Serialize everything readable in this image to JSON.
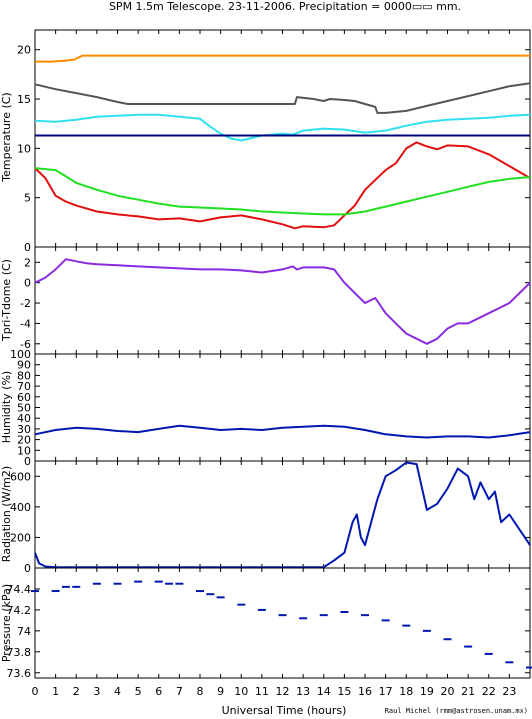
{
  "header": {
    "title": "SPM 1.5m Telescope. 23-11-2006. Precipitation = 0000▭▭ mm."
  },
  "footer": {
    "xlabel": "Universal Time (hours)",
    "credit": "Raul Michel (rmm@astrosen.unam.mx)"
  },
  "colors": {
    "orange": "#ff8c00",
    "gray": "#555555",
    "cyan": "#30e0f0",
    "navy": "#00007a",
    "red": "#e01010",
    "green": "#20e020",
    "purple": "#8a2be2",
    "blue": "#0018b0"
  },
  "chart_data": [
    {
      "type": "line",
      "ylabel": "Temperature (C)",
      "xlim": [
        0,
        24
      ],
      "ylim": [
        0,
        22
      ],
      "yticks": [
        "0",
        "5",
        "10",
        "15",
        "20"
      ],
      "xticks": [
        "0",
        "1",
        "2",
        "3",
        "4",
        "5",
        "6",
        "7",
        "8",
        "9",
        "10",
        "11",
        "12",
        "13",
        "14",
        "15",
        "16",
        "17",
        "18",
        "19",
        "20",
        "21",
        "22",
        "23"
      ],
      "series": [
        {
          "color": "orange",
          "points": [
            [
              0,
              18.8
            ],
            [
              0.8,
              18.8
            ],
            [
              1.5,
              18.9
            ],
            [
              1.9,
              19.0
            ],
            [
              2.3,
              19.4
            ],
            [
              6,
              19.4
            ],
            [
              12,
              19.4
            ],
            [
              18,
              19.4
            ],
            [
              24,
              19.4
            ]
          ]
        },
        {
          "color": "gray",
          "points": [
            [
              0,
              16.5
            ],
            [
              1,
              16.0
            ],
            [
              2,
              15.6
            ],
            [
              3,
              15.2
            ],
            [
              4,
              14.7
            ],
            [
              4.5,
              14.5
            ],
            [
              8,
              14.5
            ],
            [
              12.6,
              14.5
            ],
            [
              12.7,
              15.2
            ],
            [
              13.5,
              15.0
            ],
            [
              14,
              14.8
            ],
            [
              14.3,
              15.0
            ],
            [
              15,
              14.9
            ],
            [
              15.5,
              14.8
            ],
            [
              16,
              14.5
            ],
            [
              16.5,
              14.2
            ],
            [
              16.6,
              13.6
            ],
            [
              17,
              13.6
            ],
            [
              18,
              13.8
            ],
            [
              19,
              14.3
            ],
            [
              20,
              14.8
            ],
            [
              21,
              15.3
            ],
            [
              22,
              15.8
            ],
            [
              23,
              16.3
            ],
            [
              24,
              16.6
            ]
          ]
        },
        {
          "color": "cyan",
          "points": [
            [
              0,
              12.8
            ],
            [
              1,
              12.7
            ],
            [
              2,
              12.9
            ],
            [
              3,
              13.2
            ],
            [
              4,
              13.3
            ],
            [
              5,
              13.4
            ],
            [
              6,
              13.4
            ],
            [
              7,
              13.2
            ],
            [
              8,
              13.0
            ],
            [
              8.5,
              12.2
            ],
            [
              9,
              11.5
            ],
            [
              9.5,
              11.0
            ],
            [
              10,
              10.8
            ],
            [
              11,
              11.3
            ],
            [
              12,
              11.5
            ],
            [
              12.5,
              11.4
            ],
            [
              13,
              11.8
            ],
            [
              14,
              12.0
            ],
            [
              15,
              11.9
            ],
            [
              16,
              11.6
            ],
            [
              17,
              11.8
            ],
            [
              18,
              12.3
            ],
            [
              19,
              12.7
            ],
            [
              20,
              12.9
            ],
            [
              21,
              13.0
            ],
            [
              22,
              13.1
            ],
            [
              23,
              13.3
            ],
            [
              24,
              13.4
            ]
          ]
        },
        {
          "color": "navy",
          "points": [
            [
              0,
              11.3
            ],
            [
              24,
              11.3
            ]
          ]
        },
        {
          "color": "red",
          "points": [
            [
              0,
              8.0
            ],
            [
              0.5,
              7.0
            ],
            [
              1,
              5.2
            ],
            [
              1.5,
              4.6
            ],
            [
              2,
              4.2
            ],
            [
              3,
              3.6
            ],
            [
              4,
              3.3
            ],
            [
              5,
              3.1
            ],
            [
              6,
              2.8
            ],
            [
              7,
              2.9
            ],
            [
              8,
              2.6
            ],
            [
              9,
              3.0
            ],
            [
              10,
              3.2
            ],
            [
              11,
              2.8
            ],
            [
              12,
              2.3
            ],
            [
              12.6,
              1.9
            ],
            [
              13,
              2.1
            ],
            [
              14,
              2.0
            ],
            [
              14.5,
              2.2
            ],
            [
              15,
              3.2
            ],
            [
              15.5,
              4.2
            ],
            [
              16,
              5.8
            ],
            [
              17,
              7.8
            ],
            [
              17.5,
              8.5
            ],
            [
              18,
              10.0
            ],
            [
              18.5,
              10.6
            ],
            [
              19,
              10.2
            ],
            [
              19.5,
              9.9
            ],
            [
              20,
              10.3
            ],
            [
              21,
              10.2
            ],
            [
              22,
              9.4
            ],
            [
              23,
              8.2
            ],
            [
              24,
              7.0
            ]
          ]
        },
        {
          "color": "green",
          "points": [
            [
              0,
              8.0
            ],
            [
              1,
              7.8
            ],
            [
              2,
              6.5
            ],
            [
              3,
              5.8
            ],
            [
              4,
              5.2
            ],
            [
              5,
              4.8
            ],
            [
              6,
              4.4
            ],
            [
              7,
              4.1
            ],
            [
              8,
              4.0
            ],
            [
              9,
              3.9
            ],
            [
              10,
              3.8
            ],
            [
              11,
              3.6
            ],
            [
              12,
              3.5
            ],
            [
              13,
              3.4
            ],
            [
              14,
              3.3
            ],
            [
              15,
              3.3
            ],
            [
              16,
              3.6
            ],
            [
              17,
              4.1
            ],
            [
              18,
              4.6
            ],
            [
              19,
              5.1
            ],
            [
              20,
              5.6
            ],
            [
              21,
              6.1
            ],
            [
              22,
              6.6
            ],
            [
              23,
              6.9
            ],
            [
              24,
              7.1
            ]
          ]
        }
      ]
    },
    {
      "type": "line",
      "ylabel": "Tpri-Tdome (C)",
      "xlim": [
        0,
        24
      ],
      "ylim": [
        -7,
        3.5
      ],
      "yticks": [
        "-6",
        "-4",
        "-2",
        "0",
        "2"
      ],
      "series": [
        {
          "color": "purple",
          "points": [
            [
              0,
              0
            ],
            [
              0.5,
              0.5
            ],
            [
              1,
              1.3
            ],
            [
              1.5,
              2.3
            ],
            [
              2,
              2.1
            ],
            [
              2.5,
              1.9
            ],
            [
              3,
              1.8
            ],
            [
              4,
              1.7
            ],
            [
              5,
              1.6
            ],
            [
              6,
              1.5
            ],
            [
              7,
              1.4
            ],
            [
              8,
              1.3
            ],
            [
              9,
              1.3
            ],
            [
              10,
              1.2
            ],
            [
              11,
              1.0
            ],
            [
              12,
              1.3
            ],
            [
              12.5,
              1.6
            ],
            [
              12.7,
              1.3
            ],
            [
              13,
              1.5
            ],
            [
              14,
              1.5
            ],
            [
              14.5,
              1.3
            ],
            [
              15,
              0
            ],
            [
              15.5,
              -1.0
            ],
            [
              16,
              -2.0
            ],
            [
              16.5,
              -1.5
            ],
            [
              17,
              -3.0
            ],
            [
              17.5,
              -4.0
            ],
            [
              18,
              -5.0
            ],
            [
              18.5,
              -5.5
            ],
            [
              19,
              -6.0
            ],
            [
              19.5,
              -5.5
            ],
            [
              20,
              -4.5
            ],
            [
              20.5,
              -4.0
            ],
            [
              21,
              -4.0
            ],
            [
              21.5,
              -3.5
            ],
            [
              22,
              -3.0
            ],
            [
              22.5,
              -2.5
            ],
            [
              23,
              -2.0
            ],
            [
              23.5,
              -1.0
            ],
            [
              24,
              0
            ]
          ]
        }
      ]
    },
    {
      "type": "line",
      "ylabel": "Humidity (%)",
      "xlim": [
        0,
        24
      ],
      "ylim": [
        0,
        100
      ],
      "yticks": [
        "0",
        "10",
        "20",
        "30",
        "40",
        "50",
        "60",
        "70",
        "80",
        "90",
        "100"
      ],
      "series": [
        {
          "color": "blue",
          "points": [
            [
              0,
              25
            ],
            [
              1,
              29
            ],
            [
              2,
              31
            ],
            [
              3,
              30
            ],
            [
              4,
              28
            ],
            [
              5,
              27
            ],
            [
              6,
              30
            ],
            [
              7,
              33
            ],
            [
              8,
              31
            ],
            [
              9,
              29
            ],
            [
              10,
              30
            ],
            [
              11,
              29
            ],
            [
              12,
              31
            ],
            [
              13,
              32
            ],
            [
              14,
              33
            ],
            [
              15,
              32
            ],
            [
              16,
              29
            ],
            [
              17,
              25
            ],
            [
              18,
              23
            ],
            [
              19,
              22
            ],
            [
              20,
              23
            ],
            [
              21,
              23
            ],
            [
              22,
              22
            ],
            [
              23,
              24
            ],
            [
              24,
              27
            ]
          ]
        }
      ]
    },
    {
      "type": "line",
      "ylabel": "Radiation (W/m2)",
      "xlim": [
        0,
        24
      ],
      "ylim": [
        0,
        700
      ],
      "yticks": [
        "0",
        "200",
        "400",
        "600"
      ],
      "series": [
        {
          "color": "blue",
          "points": [
            [
              0,
              100
            ],
            [
              0.2,
              30
            ],
            [
              0.5,
              10
            ],
            [
              1,
              5
            ],
            [
              5,
              5
            ],
            [
              10,
              5
            ],
            [
              14,
              5
            ],
            [
              14.5,
              50
            ],
            [
              15,
              100
            ],
            [
              15.4,
              300
            ],
            [
              15.6,
              350
            ],
            [
              15.8,
              200
            ],
            [
              16,
              150
            ],
            [
              16.3,
              300
            ],
            [
              16.6,
              450
            ],
            [
              17,
              600
            ],
            [
              17.5,
              640
            ],
            [
              18,
              690
            ],
            [
              18.5,
              680
            ],
            [
              18.8,
              500
            ],
            [
              19,
              380
            ],
            [
              19.5,
              420
            ],
            [
              20,
              520
            ],
            [
              20.5,
              650
            ],
            [
              20.8,
              620
            ],
            [
              21,
              600
            ],
            [
              21.3,
              450
            ],
            [
              21.6,
              560
            ],
            [
              22,
              450
            ],
            [
              22.3,
              500
            ],
            [
              22.6,
              300
            ],
            [
              23,
              350
            ],
            [
              23.5,
              250
            ],
            [
              24,
              150
            ]
          ]
        }
      ]
    },
    {
      "type": "scatter",
      "ylabel": "Pressure (kPa)",
      "xlim": [
        0,
        24
      ],
      "ylim": [
        73.55,
        74.6
      ],
      "yticks": [
        "73.6",
        "73.8",
        "74",
        "74.2",
        "74.4"
      ],
      "series": [
        {
          "color": "blue",
          "points": [
            [
              0,
              74.38
            ],
            [
              1,
              74.38
            ],
            [
              1.5,
              74.42
            ],
            [
              2,
              74.42
            ],
            [
              3,
              74.45
            ],
            [
              4,
              74.45
            ],
            [
              5,
              74.47
            ],
            [
              6,
              74.47
            ],
            [
              6.5,
              74.45
            ],
            [
              7,
              74.45
            ],
            [
              8,
              74.38
            ],
            [
              8.5,
              74.35
            ],
            [
              9,
              74.32
            ],
            [
              10,
              74.25
            ],
            [
              11,
              74.2
            ],
            [
              12,
              74.15
            ],
            [
              13,
              74.12
            ],
            [
              14,
              74.15
            ],
            [
              15,
              74.18
            ],
            [
              16,
              74.15
            ],
            [
              17,
              74.1
            ],
            [
              18,
              74.05
            ],
            [
              19,
              74.0
            ],
            [
              20,
              73.92
            ],
            [
              21,
              73.85
            ],
            [
              22,
              73.78
            ],
            [
              23,
              73.7
            ],
            [
              24,
              73.65
            ]
          ]
        }
      ]
    }
  ]
}
